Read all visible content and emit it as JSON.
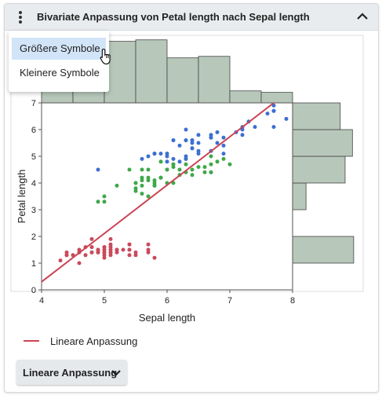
{
  "header": {
    "title": "Bivariate Anpassung von Petal length nach Sepal length"
  },
  "menu": {
    "items": [
      {
        "label": "Größere Symbole"
      },
      {
        "label": "Kleinere Symbole"
      }
    ]
  },
  "fit_button": {
    "label": "Lineare Anpassung"
  },
  "colors": {
    "setosa": "#c94a5c",
    "versicolor": "#3fa84a",
    "virginica": "#3d6fd1",
    "fit_line": "#cc4455",
    "histogram_fill": "#b7c8ba",
    "histogram_stroke": "#444444"
  },
  "chart_data": {
    "type": "scatter",
    "xlabel": "Sepal length",
    "ylabel": "Petal length",
    "xlim": [
      4,
      8
    ],
    "ylim": [
      0,
      7
    ],
    "xticks": [
      4,
      5,
      6,
      7,
      8
    ],
    "yticks": [
      0,
      1,
      2,
      3,
      4,
      5,
      6,
      7
    ],
    "fit_line": {
      "x": [
        4.0,
        7.7
      ],
      "y": [
        0.3,
        7.0
      ]
    },
    "legend": {
      "entries": [
        {
          "label": "Lineare Anpassung"
        }
      ],
      "position": "bottom-left"
    },
    "x_histogram": {
      "bins": [
        4.0,
        4.5,
        5.0,
        5.5,
        6.0,
        6.5,
        7.0,
        7.5,
        8.0
      ],
      "counts": [
        9,
        32,
        41,
        42,
        30,
        31,
        8,
        7
      ]
    },
    "y_histogram": {
      "bins": [
        1,
        2,
        3,
        4,
        5,
        6,
        7
      ],
      "counts": [
        50,
        0,
        11,
        43,
        49,
        39
      ]
    },
    "groups": [
      {
        "color": "#c94a5c",
        "x": [
          4.3,
          4.4,
          4.4,
          4.4,
          4.5,
          4.6,
          4.6,
          4.6,
          4.7,
          4.7,
          4.8,
          4.8,
          4.8,
          4.8,
          4.8,
          4.9,
          4.9,
          4.9,
          4.9,
          5.0,
          5.0,
          5.0,
          5.0,
          5.0,
          5.0,
          5.0,
          5.0,
          5.1,
          5.1,
          5.1,
          5.1,
          5.1,
          5.1,
          5.1,
          5.1,
          5.2,
          5.2,
          5.2,
          5.3,
          5.4,
          5.4,
          5.4,
          5.4,
          5.4,
          5.5,
          5.5,
          5.7,
          5.7,
          5.7,
          5.8
        ],
        "y": [
          1.1,
          1.3,
          1.4,
          1.3,
          1.3,
          1.4,
          1.5,
          1.0,
          1.3,
          1.6,
          1.6,
          1.4,
          1.9,
          1.4,
          1.6,
          1.4,
          1.5,
          1.4,
          1.5,
          1.4,
          1.5,
          1.6,
          1.2,
          1.3,
          1.6,
          1.4,
          1.5,
          1.4,
          1.5,
          1.9,
          1.7,
          1.5,
          1.4,
          1.6,
          1.3,
          1.5,
          1.4,
          1.5,
          1.5,
          1.7,
          1.5,
          1.3,
          1.7,
          1.5,
          1.4,
          1.3,
          1.7,
          1.5,
          1.4,
          1.2
        ]
      },
      {
        "color": "#3fa84a",
        "x": [
          4.9,
          5.0,
          5.0,
          5.2,
          5.5,
          5.6,
          5.6,
          5.6,
          5.6,
          5.7,
          5.7,
          5.8,
          5.8,
          5.8,
          5.9,
          5.9,
          6.0,
          6.0,
          6.0,
          6.0,
          6.1,
          6.1,
          6.1,
          6.2,
          6.2,
          6.3,
          6.3,
          6.4,
          6.4,
          6.5,
          6.6,
          6.6,
          6.7,
          6.7,
          6.7,
          6.8,
          6.9,
          7.0,
          5.4,
          5.5,
          5.5,
          5.5,
          5.6,
          5.7,
          5.7,
          5.8,
          5.9,
          6.1,
          6.3,
          6.7
        ],
        "y": [
          3.3,
          3.5,
          3.3,
          3.9,
          4.0,
          3.6,
          4.5,
          4.2,
          3.9,
          4.5,
          4.2,
          4.1,
          4.0,
          3.9,
          4.8,
          4.2,
          4.5,
          4.0,
          5.1,
          4.5,
          4.7,
          4.0,
          4.6,
          4.5,
          4.3,
          4.9,
          4.4,
          4.5,
          4.3,
          4.6,
          4.4,
          4.6,
          4.4,
          5.0,
          4.7,
          4.8,
          4.9,
          4.7,
          4.5,
          3.7,
          4.0,
          3.8,
          4.1,
          3.5,
          4.1,
          3.9,
          4.2,
          4.7,
          4.7,
          4.4
        ]
      },
      {
        "color": "#3d6fd1",
        "x": [
          4.9,
          5.6,
          5.7,
          5.8,
          5.8,
          5.8,
          5.9,
          6.0,
          6.0,
          6.1,
          6.1,
          6.2,
          6.2,
          6.3,
          6.3,
          6.3,
          6.3,
          6.4,
          6.4,
          6.4,
          6.4,
          6.5,
          6.5,
          6.5,
          6.5,
          6.7,
          6.7,
          6.7,
          6.7,
          6.8,
          6.8,
          6.9,
          6.9,
          6.9,
          7.1,
          7.2,
          7.2,
          7.2,
          7.3,
          7.4,
          7.6,
          7.7,
          7.7,
          7.7,
          7.7,
          7.9,
          6.0,
          6.1,
          6.3,
          6.4
        ],
        "y": [
          4.5,
          4.9,
          5.0,
          5.1,
          5.1,
          5.1,
          5.1,
          5.0,
          4.8,
          5.6,
          4.9,
          5.4,
          4.8,
          6.0,
          5.6,
          4.9,
          5.6,
          5.3,
          5.6,
          5.5,
          5.3,
          5.8,
          5.5,
          5.2,
          5.1,
          5.8,
          5.7,
          5.7,
          5.2,
          5.9,
          5.5,
          5.4,
          5.7,
          5.1,
          5.9,
          6.1,
          6.0,
          5.8,
          6.3,
          6.1,
          6.6,
          6.7,
          6.9,
          6.7,
          6.1,
          6.4,
          5.1,
          5.6,
          5.0,
          5.6
        ]
      }
    ]
  }
}
